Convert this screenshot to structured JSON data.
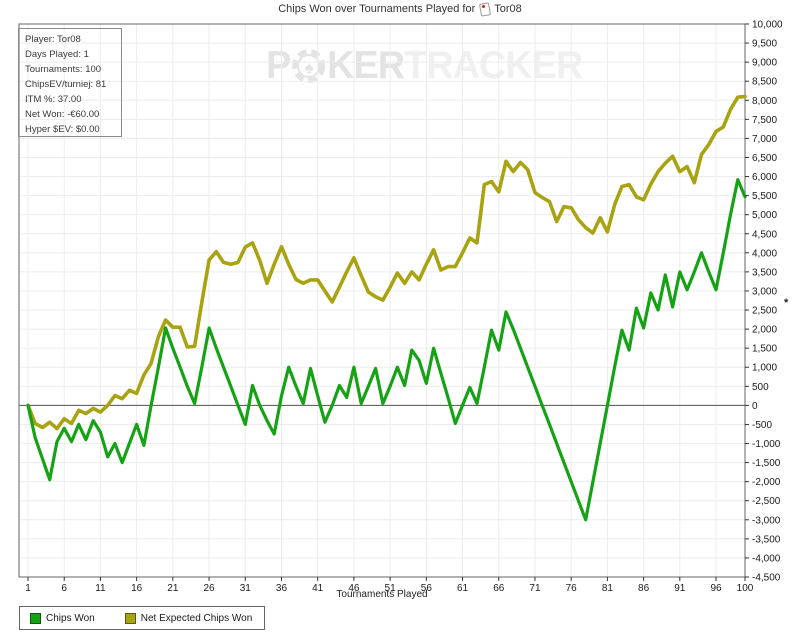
{
  "title": {
    "text": "Chips Won over Tournaments Played for",
    "player": "Tor08"
  },
  "watermark": {
    "part1": "P",
    "part2": "KER",
    "part3": "TRACKER",
    "chip_icon": "poker-chip-spade-icon"
  },
  "info": {
    "lines": [
      "Player: Tor08",
      "Days Played: 1",
      "Tournaments: 100",
      "ChipsEV/turniej: 81",
      "ITM %: 37.00",
      "Net Won: -€60.00",
      "Hyper $EV: $0.00"
    ]
  },
  "legend": {
    "items": [
      {
        "label": "Chips Won",
        "color": "#15a315"
      },
      {
        "label": "Net Expected Chips Won",
        "color": "#a9a311"
      }
    ]
  },
  "axes": {
    "y_axis_side": "right",
    "y_axis_marker": "*"
  },
  "chart_data": {
    "type": "line",
    "title": "Chips Won over Tournaments Played for Tor08",
    "xlabel": "Tournaments Played",
    "ylabel": "",
    "x_range": [
      1,
      100
    ],
    "xticks": [
      1,
      6,
      11,
      16,
      21,
      26,
      31,
      36,
      41,
      46,
      51,
      56,
      61,
      66,
      71,
      76,
      81,
      86,
      91,
      96,
      100
    ],
    "ylim": [
      -4500,
      10000
    ],
    "ytick_step": 500,
    "grid": true,
    "legend_position": "bottom-left",
    "zero_line": true,
    "series": [
      {
        "name": "Chips Won",
        "color": "#15a315",
        "values": [
          0,
          -850,
          -1400,
          -1950,
          -950,
          -600,
          -950,
          -500,
          -900,
          -400,
          -700,
          -1350,
          -1000,
          -1500,
          -1000,
          -500,
          -1050,
          0,
          1000,
          2030,
          1500,
          1000,
          500,
          50,
          1000,
          2030,
          1500,
          1000,
          500,
          0,
          -500,
          520,
          0,
          -400,
          -750,
          250,
          1000,
          500,
          50,
          970,
          250,
          -440,
          0,
          520,
          210,
          1000,
          50,
          500,
          970,
          50,
          500,
          1000,
          520,
          1450,
          1180,
          580,
          1500,
          850,
          200,
          -475,
          0,
          475,
          50,
          1000,
          1975,
          1450,
          2450,
          2000,
          1500,
          1000,
          500,
          0,
          -500,
          -1000,
          -1500,
          -2000,
          -2500,
          -3000,
          -2000,
          -1000,
          0,
          1000,
          1975,
          1450,
          2550,
          2030,
          2950,
          2500,
          3420,
          2580,
          3500,
          3030,
          3500,
          4000,
          3500,
          3030,
          4000,
          5000,
          5920,
          5470
        ]
      },
      {
        "name": "Net Expected Chips Won",
        "color": "#a9a311",
        "values": [
          0,
          -475,
          -580,
          -440,
          -610,
          -350,
          -475,
          -130,
          -215,
          -80,
          -175,
          0,
          260,
          175,
          395,
          315,
          800,
          1100,
          1800,
          2240,
          2050,
          2050,
          1530,
          1550,
          2700,
          3815,
          4030,
          3750,
          3700,
          3750,
          4150,
          4260,
          3800,
          3200,
          3700,
          4160,
          3700,
          3300,
          3200,
          3290,
          3290,
          3000,
          2710,
          3100,
          3500,
          3870,
          3400,
          2970,
          2850,
          2760,
          3100,
          3470,
          3200,
          3500,
          3290,
          3700,
          4080,
          3550,
          3640,
          3640,
          4000,
          4390,
          4260,
          5790,
          5870,
          5600,
          6400,
          6130,
          6370,
          6180,
          5580,
          5450,
          5340,
          4820,
          5210,
          5180,
          4870,
          4660,
          4520,
          4920,
          4550,
          5260,
          5740,
          5790,
          5470,
          5390,
          5800,
          6130,
          6350,
          6530,
          6130,
          6260,
          5840,
          6580,
          6840,
          7180,
          7300,
          7760,
          8080,
          8100
        ]
      }
    ]
  }
}
